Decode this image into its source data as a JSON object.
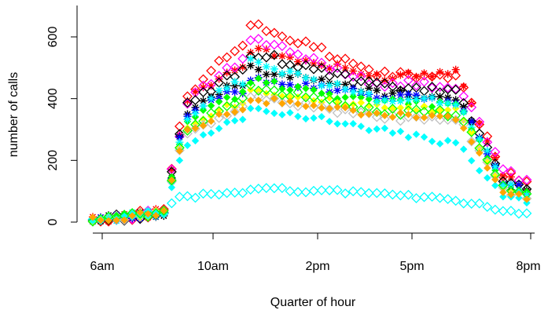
{
  "chart_data": {
    "type": "scatter",
    "title": "",
    "xlabel": "Quarter of hour",
    "ylabel": "number of calls",
    "xlim": [
      6,
      20
    ],
    "ylim": [
      0,
      650
    ],
    "x_ticks": [
      {
        "value": 7,
        "label": "6am"
      },
      {
        "value": 11,
        "label": "10am"
      },
      {
        "value": 14,
        "label": "2pm"
      },
      {
        "value": 17,
        "label": "5pm"
      },
      {
        "value": 20,
        "label": "8pm"
      }
    ],
    "y_ticks": [
      {
        "value": 0,
        "label": "0"
      },
      {
        "value": 200,
        "label": "200"
      },
      {
        "value": 400,
        "label": "400"
      },
      {
        "value": 600,
        "label": "600"
      }
    ],
    "grid": false,
    "legend": "none",
    "series": [
      {
        "color": "#ff0000",
        "marker": "diamond-open",
        "peak": 645,
        "plateau": 480,
        "hump": 470,
        "evening": 115
      },
      {
        "color": "#ff0000",
        "marker": "star",
        "peak": 560,
        "plateau": 470,
        "hump": 490,
        "evening": 105
      },
      {
        "color": "#ff00ff",
        "marker": "diamond-open",
        "peak": 595,
        "plateau": 450,
        "hump": 440,
        "evening": 120
      },
      {
        "color": "#000000",
        "marker": "diamond-open",
        "peak": 550,
        "plateau": 440,
        "hump": 420,
        "evening": 100
      },
      {
        "color": "#000000",
        "marker": "star",
        "peak": 500,
        "plateau": 420,
        "hump": 400,
        "evening": 90
      },
      {
        "color": "#0000ff",
        "marker": "star",
        "peak": 470,
        "plateau": 410,
        "hump": 390,
        "evening": 95
      },
      {
        "color": "#00ff00",
        "marker": "diamond-filled",
        "peak": 460,
        "plateau": 390,
        "hump": 380,
        "evening": 85
      },
      {
        "color": "#ffff00",
        "marker": "diamond-filled",
        "peak": 430,
        "plateau": 370,
        "hump": 360,
        "evening": 80
      },
      {
        "color": "#c0c0c0",
        "marker": "diamond-open",
        "peak": 410,
        "plateau": 340,
        "hump": 330,
        "evening": 75
      },
      {
        "color": "#00ffff",
        "marker": "star",
        "peak": 520,
        "plateau": 400,
        "hump": 390,
        "evening": 90
      },
      {
        "color": "#00ffff",
        "marker": "diamond-filled",
        "peak": 375,
        "plateau": 300,
        "hump": 250,
        "evening": 60
      },
      {
        "color": "#00ffff",
        "marker": "diamond-open",
        "peak": 108,
        "plateau": 95,
        "hump": 68,
        "evening": 28
      },
      {
        "color": "#00ff00",
        "marker": "diamond-open",
        "peak": 440,
        "plateau": 360,
        "hump": 350,
        "evening": 80
      },
      {
        "color": "#ffa500",
        "marker": "diamond-filled",
        "peak": 400,
        "plateau": 350,
        "hump": 330,
        "evening": 75
      }
    ]
  }
}
